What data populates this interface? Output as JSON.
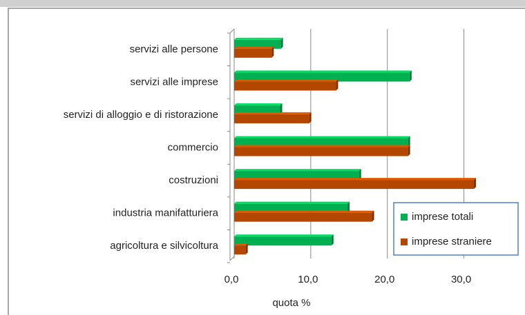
{
  "chart_data": {
    "type": "bar",
    "orientation": "horizontal",
    "x_label": "quota %",
    "categories": [
      "servizi alle persone",
      "servizi alle imprese",
      "servizi di alloggio e di ristorazione",
      "commercio",
      "costruzioni",
      "industria manifatturiera",
      "agricoltura e silvicoltura"
    ],
    "series": [
      {
        "name": "imprese totali",
        "color": "#00b050",
        "values": [
          6.1,
          22.9,
          6.0,
          22.7,
          16.3,
          14.8,
          12.7
        ]
      },
      {
        "name": "imprese straniere",
        "color": "#b34700",
        "values": [
          4.9,
          13.3,
          9.8,
          22.7,
          31.3,
          18.0,
          1.5
        ]
      }
    ],
    "xlim": [
      0,
      35
    ],
    "xticks": [
      {
        "value": 0,
        "label": "0,0"
      },
      {
        "value": 10,
        "label": "10,0"
      },
      {
        "value": 20,
        "label": "20,0"
      },
      {
        "value": 30,
        "label": "30,0"
      }
    ],
    "grid": true,
    "legend": "lower right"
  }
}
